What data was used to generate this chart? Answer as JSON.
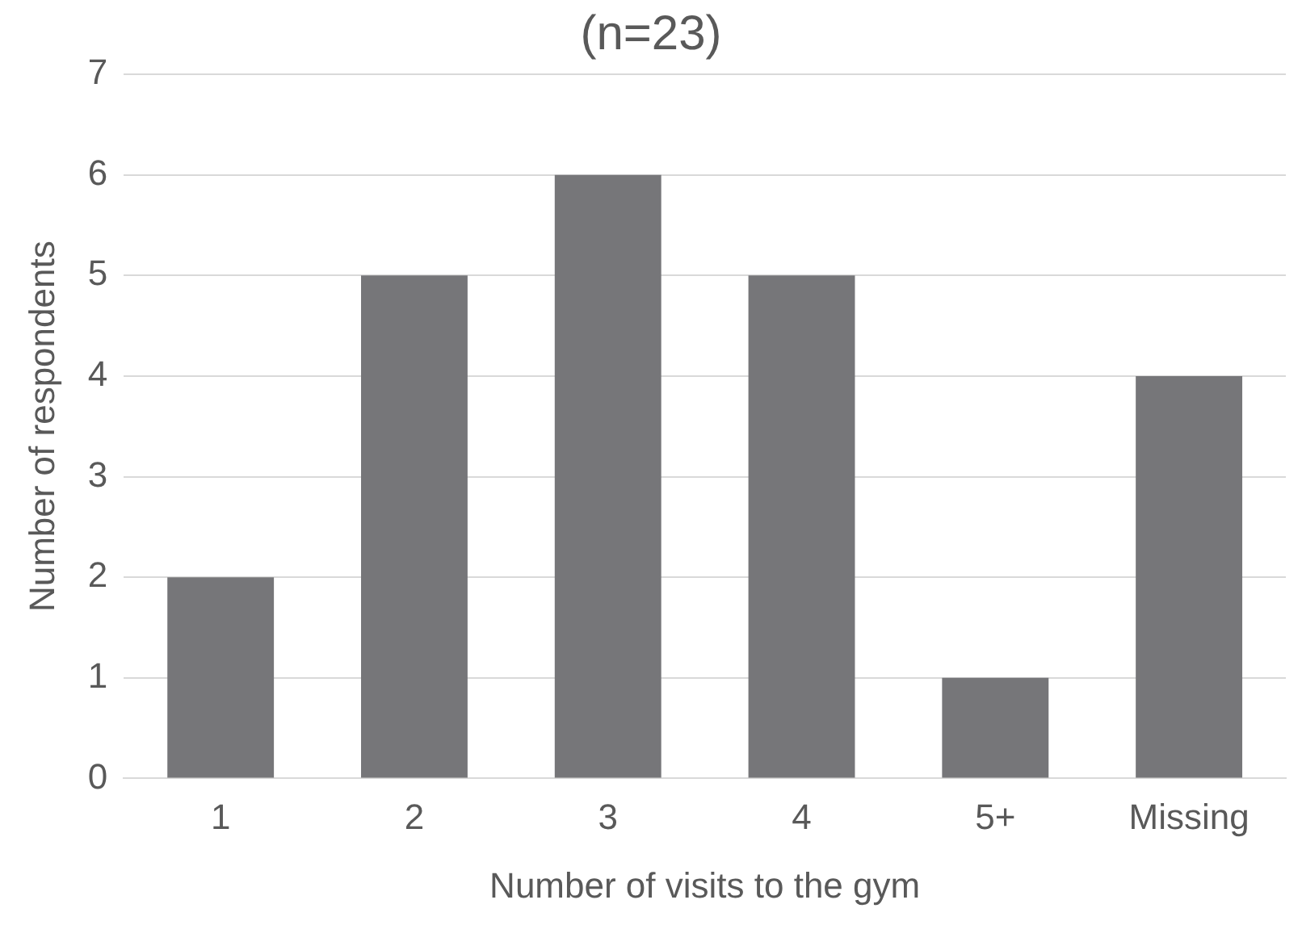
{
  "chart_data": {
    "type": "bar",
    "title": "(n=23)",
    "xlabel": "Number of visits to the gym",
    "ylabel": "Number of respondents",
    "categories": [
      "1",
      "2",
      "3",
      "4",
      "5+",
      "Missing"
    ],
    "values": [
      2,
      5,
      6,
      5,
      1,
      4
    ],
    "color": "#767679",
    "ylim": [
      0,
      7
    ],
    "yticks": [
      0,
      1,
      2,
      3,
      4,
      5,
      6,
      7
    ],
    "grid": "y",
    "legend": false
  }
}
